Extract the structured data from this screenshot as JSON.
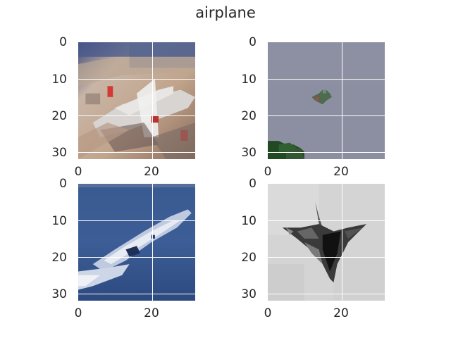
{
  "title": "airplane",
  "panels": [
    {
      "name": "panel-1",
      "description_icon": "airplane-on-ground-image",
      "yticks": [
        "0",
        "10",
        "20",
        "30"
      ],
      "xticks": [
        "0",
        "20"
      ]
    },
    {
      "name": "panel-2",
      "description_icon": "airplane-in-sky-image",
      "yticks": [
        "0",
        "10",
        "20",
        "30"
      ],
      "xticks": [
        "0",
        "20"
      ]
    },
    {
      "name": "panel-3",
      "description_icon": "airplane-over-water-image",
      "yticks": [
        "0",
        "10",
        "20",
        "30"
      ],
      "xticks": [
        "0",
        "20"
      ]
    },
    {
      "name": "panel-4",
      "description_icon": "stealth-jet-image",
      "yticks": [
        "0",
        "10",
        "20",
        "30"
      ],
      "xticks": [
        "0",
        "20"
      ]
    }
  ]
}
